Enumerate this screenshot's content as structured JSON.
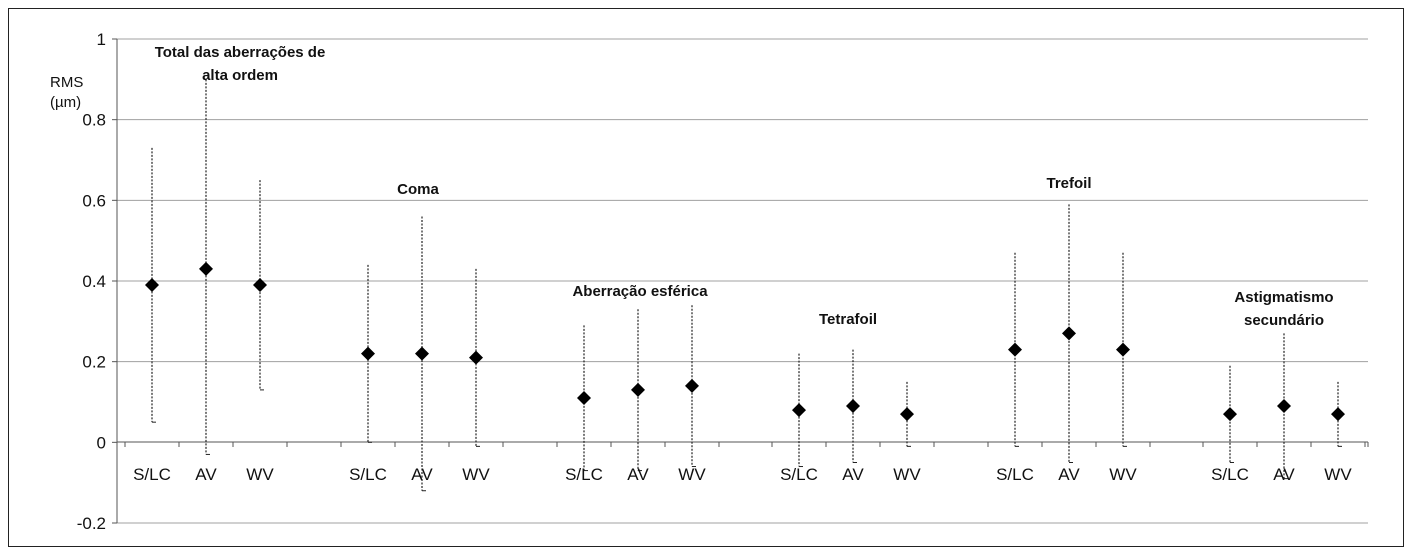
{
  "chart_data": {
    "type": "scatter",
    "ylabel": [
      "RMS",
      "(µm)"
    ],
    "ylim": [
      -0.2,
      1
    ],
    "yticks": [
      "1",
      "0.8",
      "0.6",
      "0.4",
      "0.2",
      "0",
      "-0.2"
    ],
    "grid": true,
    "marker": "diamond",
    "colors": {
      "marker": "#000000",
      "grid": "#a0a0a0",
      "errorbar": "#222222"
    },
    "groups": [
      {
        "title": [
          "Total das aberrações de",
          "alta ordem"
        ],
        "points": [
          {
            "label": "S/LC",
            "value": 0.39,
            "low": 0.05,
            "high": 0.73
          },
          {
            "label": "AV",
            "value": 0.43,
            "low": -0.03,
            "high": 0.9
          },
          {
            "label": "WV",
            "value": 0.39,
            "low": 0.13,
            "high": 0.65
          }
        ]
      },
      {
        "title": [
          "Coma"
        ],
        "points": [
          {
            "label": "S/LC",
            "value": 0.22,
            "low": 0.0,
            "high": 0.44
          },
          {
            "label": "AV",
            "value": 0.22,
            "low": -0.12,
            "high": 0.56
          },
          {
            "label": "WV",
            "value": 0.21,
            "low": -0.01,
            "high": 0.43
          }
        ]
      },
      {
        "title": [
          "Aberração esférica"
        ],
        "points": [
          {
            "label": "S/LC",
            "value": 0.11,
            "low": -0.07,
            "high": 0.29
          },
          {
            "label": "AV",
            "value": 0.13,
            "low": -0.07,
            "high": 0.33
          },
          {
            "label": "WV",
            "value": 0.14,
            "low": -0.06,
            "high": 0.34
          }
        ]
      },
      {
        "title": [
          "Tetrafoil"
        ],
        "points": [
          {
            "label": "S/LC",
            "value": 0.08,
            "low": -0.06,
            "high": 0.22
          },
          {
            "label": "AV",
            "value": 0.09,
            "low": -0.05,
            "high": 0.23
          },
          {
            "label": "WV",
            "value": 0.07,
            "low": -0.01,
            "high": 0.15
          }
        ]
      },
      {
        "title": [
          "Trefoil"
        ],
        "points": [
          {
            "label": "S/LC",
            "value": 0.23,
            "low": -0.01,
            "high": 0.47
          },
          {
            "label": "AV",
            "value": 0.27,
            "low": -0.05,
            "high": 0.59
          },
          {
            "label": "WV",
            "value": 0.23,
            "low": -0.01,
            "high": 0.47
          }
        ]
      },
      {
        "title": [
          "Astigmatismo",
          "secundário"
        ],
        "points": [
          {
            "label": "S/LC",
            "value": 0.07,
            "low": -0.05,
            "high": 0.19
          },
          {
            "label": "AV",
            "value": 0.09,
            "low": -0.09,
            "high": 0.27
          },
          {
            "label": "WV",
            "value": 0.07,
            "low": -0.01,
            "high": 0.15
          }
        ]
      }
    ]
  }
}
